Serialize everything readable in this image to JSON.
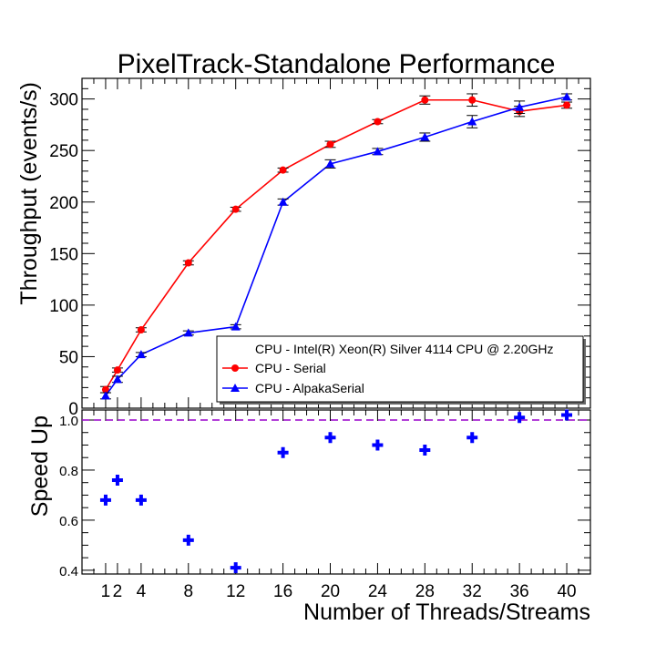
{
  "chart_data": [
    {
      "type": "line",
      "title": "PixelTrack-Standalone Performance",
      "ylabel": "Throughput (events/s)",
      "xlim": [
        -1,
        42
      ],
      "ylim": [
        0,
        320
      ],
      "yticks": [
        0,
        50,
        100,
        150,
        200,
        250,
        300
      ],
      "legend": {
        "placement": "bottom-right",
        "header": "CPU - Intel(R) Xeon(R) Silver 4114 CPU @ 2.20GHz"
      },
      "x": [
        1,
        2,
        4,
        8,
        12,
        16,
        20,
        24,
        28,
        32,
        36,
        40
      ],
      "series": [
        {
          "name": "CPU - Serial",
          "color": "#ff0000",
          "marker": "circle",
          "values": [
            18,
            37,
            76,
            141,
            193,
            231,
            256,
            278,
            299,
            299,
            288,
            294
          ],
          "errors": [
            3,
            2,
            2,
            2,
            2,
            2,
            3,
            2,
            4,
            6,
            5,
            3
          ]
        },
        {
          "name": "CPU - AlpakaSerial",
          "color": "#0000ff",
          "marker": "triangle",
          "values": [
            12,
            28,
            52,
            73,
            79,
            200,
            237,
            249,
            263,
            278,
            292,
            302
          ],
          "errors": [
            3,
            3,
            2,
            2,
            2,
            3,
            4,
            3,
            4,
            6,
            6,
            3
          ]
        }
      ]
    },
    {
      "type": "scatter",
      "ylabel": "Speed Up",
      "xlabel": "Number of Threads/Streams",
      "xlim": [
        -1,
        42
      ],
      "ylim": [
        0.385,
        1.04
      ],
      "yticks": [
        0.4,
        0.6,
        0.8,
        1.0
      ],
      "ytick_labels": [
        "0.4",
        "0.6",
        "0.8",
        "1.0"
      ],
      "xticks": [
        1,
        2,
        4,
        8,
        12,
        16,
        20,
        24,
        28,
        32,
        36,
        40
      ],
      "xtick_labels": [
        "1",
        "2",
        "4",
        "8",
        "12",
        "16",
        "20",
        "24",
        "28",
        "32",
        "36",
        "40"
      ],
      "reference_line": {
        "y": 1.0,
        "color": "#9900cc",
        "style": "dashed"
      },
      "x": [
        1,
        2,
        4,
        8,
        12,
        16,
        20,
        24,
        28,
        32,
        36,
        40
      ],
      "values": [
        0.68,
        0.76,
        0.68,
        0.52,
        0.41,
        0.87,
        0.93,
        0.9,
        0.88,
        0.93,
        1.01,
        1.02
      ],
      "color": "#0000ff",
      "marker": "plus"
    }
  ]
}
